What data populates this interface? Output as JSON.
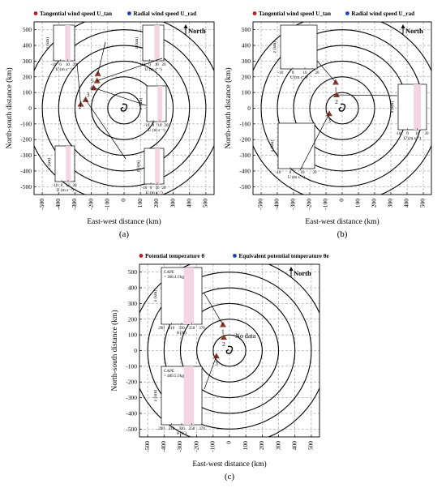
{
  "north_label": "North",
  "axis_common": {
    "xlabel": "East-west distance (km)",
    "ylabel": "North-south distance (km)",
    "ticks": [
      -500,
      -400,
      -300,
      -200,
      -100,
      0,
      100,
      200,
      300,
      400,
      500
    ]
  },
  "chart_data": [
    {
      "type": "scatter",
      "panel_label": "(a)",
      "legend": [
        {
          "name": "Tangential wind speed U_tan",
          "color": "#b22222"
        },
        {
          "name": "Radial wind speed U_rad",
          "color": "#1f3fbf"
        }
      ],
      "xlim": [
        -550,
        550
      ],
      "ylim": [
        -550,
        550
      ],
      "rings_km": [
        100,
        200,
        300,
        400,
        500,
        600
      ],
      "points": [
        {
          "label": "1",
          "x": -265,
          "y": 25
        },
        {
          "label": "2",
          "x": -235,
          "y": 55
        },
        {
          "label": "3",
          "x": -185,
          "y": 130
        },
        {
          "label": "4",
          "x": -165,
          "y": 175
        },
        {
          "label": "5",
          "x": -160,
          "y": 220
        }
      ],
      "inset_axis_labels": {
        "x": "U (m s⁻¹)",
        "y": "z (km)",
        "xticks": [
          "-10",
          "0",
          "10",
          "20"
        ]
      }
    },
    {
      "type": "scatter",
      "panel_label": "(b)",
      "legend": [
        {
          "name": "Tangential wind speed U_tan",
          "color": "#b22222"
        },
        {
          "name": "Radial wind speed U_rad",
          "color": "#1f3fbf"
        }
      ],
      "xlim": [
        -550,
        550
      ],
      "ylim": [
        -550,
        550
      ],
      "rings_km": [
        100,
        200,
        300,
        400,
        500,
        600
      ],
      "points": [
        {
          "label": "1",
          "x": -40,
          "y": 165
        },
        {
          "label": "2",
          "x": -35,
          "y": 85
        },
        {
          "label": "3",
          "x": -80,
          "y": -35
        }
      ],
      "inset_axis_labels": {
        "x": "U (m s⁻¹)",
        "y": "z (km)",
        "xticks": [
          "-10",
          "0",
          "10",
          "20"
        ]
      }
    },
    {
      "type": "scatter",
      "panel_label": "(c)",
      "legend": [
        {
          "name": "Potential temperature θ",
          "color": "#b22222"
        },
        {
          "name": "Equivalent potential temperature θe",
          "color": "#1f3fbf"
        }
      ],
      "xlim": [
        -550,
        550
      ],
      "ylim": [
        -550,
        550
      ],
      "rings_km": [
        100,
        200,
        300,
        400,
        500,
        600
      ],
      "points": [
        {
          "label": "1",
          "x": -40,
          "y": 165
        },
        {
          "label": "2",
          "x": -35,
          "y": 85
        },
        {
          "label": "3",
          "x": -80,
          "y": -35
        }
      ],
      "annotation": "No data",
      "insets": [
        {
          "cape_label": "CAPE = 368.4 J/kg",
          "xlabel": "θ (K)",
          "ylabel": "z (km)",
          "xticks": [
            "290",
            "310",
            "330",
            "350",
            "370"
          ]
        },
        {
          "cape_label": "CAPE = 489.5 J/kg",
          "xlabel": "θ (K)",
          "ylabel": "z (km)",
          "xticks": [
            "290",
            "310",
            "330",
            "350",
            "370"
          ]
        }
      ]
    }
  ]
}
